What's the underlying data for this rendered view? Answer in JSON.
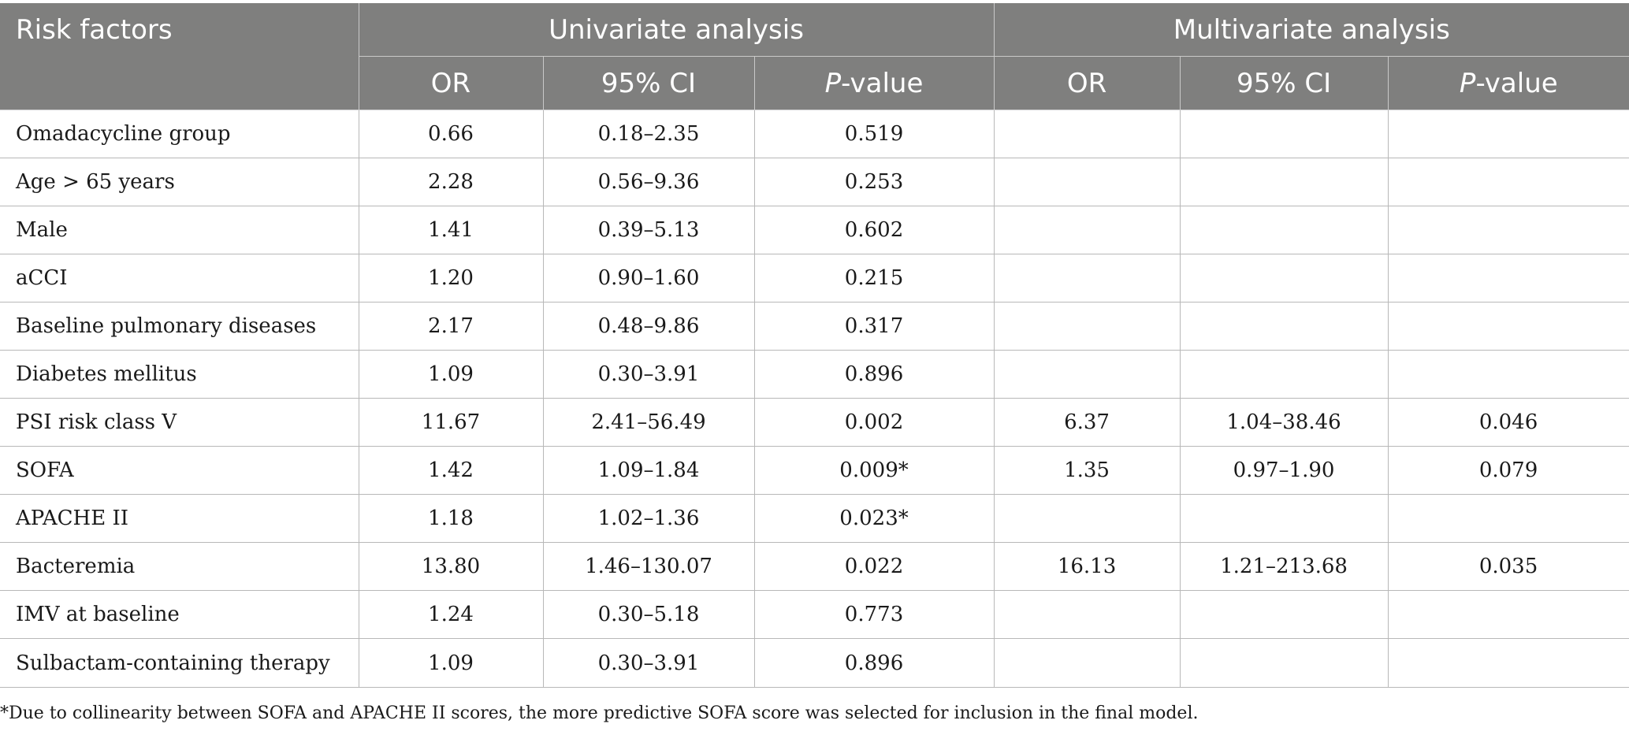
{
  "table": {
    "header": {
      "risk_factors": "Risk factors",
      "univariate": "Univariate analysis",
      "multivariate": "Multivariate analysis",
      "or": "OR",
      "ci": "95% CI",
      "p_italic": "P",
      "p_suffix": "-value"
    },
    "rows": [
      {
        "label": "Omadacycline group",
        "u_or": "0.66",
        "u_ci": "0.18–2.35",
        "u_p": "0.519",
        "m_or": "",
        "m_ci": "",
        "m_p": ""
      },
      {
        "label": "Age > 65 years",
        "u_or": "2.28",
        "u_ci": "0.56–9.36",
        "u_p": "0.253",
        "m_or": "",
        "m_ci": "",
        "m_p": ""
      },
      {
        "label": "Male",
        "u_or": "1.41",
        "u_ci": "0.39–5.13",
        "u_p": "0.602",
        "m_or": "",
        "m_ci": "",
        "m_p": ""
      },
      {
        "label": "aCCI",
        "u_or": "1.20",
        "u_ci": "0.90–1.60",
        "u_p": "0.215",
        "m_or": "",
        "m_ci": "",
        "m_p": ""
      },
      {
        "label": "Baseline pulmonary diseases",
        "u_or": "2.17",
        "u_ci": "0.48–9.86",
        "u_p": "0.317",
        "m_or": "",
        "m_ci": "",
        "m_p": ""
      },
      {
        "label": "Diabetes mellitus",
        "u_or": "1.09",
        "u_ci": "0.30–3.91",
        "u_p": "0.896",
        "m_or": "",
        "m_ci": "",
        "m_p": ""
      },
      {
        "label": "PSI risk class V",
        "u_or": "11.67",
        "u_ci": "2.41–56.49",
        "u_p": "0.002",
        "m_or": "6.37",
        "m_ci": "1.04–38.46",
        "m_p": "0.046"
      },
      {
        "label": "SOFA",
        "u_or": "1.42",
        "u_ci": "1.09–1.84",
        "u_p": "0.009*",
        "m_or": "1.35",
        "m_ci": "0.97–1.90",
        "m_p": "0.079"
      },
      {
        "label": "APACHE II",
        "u_or": "1.18",
        "u_ci": "1.02–1.36",
        "u_p": "0.023*",
        "m_or": "",
        "m_ci": "",
        "m_p": ""
      },
      {
        "label": "Bacteremia",
        "u_or": "13.80",
        "u_ci": "1.46–130.07",
        "u_p": "0.022",
        "m_or": "16.13",
        "m_ci": "1.21–213.68",
        "m_p": "0.035"
      },
      {
        "label": "IMV at baseline",
        "u_or": "1.24",
        "u_ci": "0.30–5.18",
        "u_p": "0.773",
        "m_or": "",
        "m_ci": "",
        "m_p": ""
      },
      {
        "label": "Sulbactam-containing therapy",
        "u_or": "1.09",
        "u_ci": "0.30–3.91",
        "u_p": "0.896",
        "m_or": "",
        "m_ci": "",
        "m_p": ""
      }
    ]
  },
  "footnote": "*Due to collinearity between SOFA and APACHE II scores, the more predictive SOFA score was selected for inclusion in the final model.",
  "colors": {
    "header_bg": "#7f7f7e",
    "header_text": "#ffffff",
    "grid": "#b8b8b8"
  }
}
